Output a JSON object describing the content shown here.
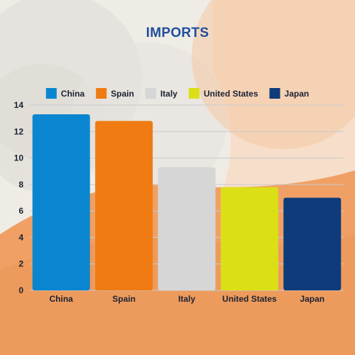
{
  "chart_data": {
    "type": "bar",
    "title": "IMPORTS",
    "categories": [
      "China",
      "Spain",
      "Italy",
      "United States",
      "Japan"
    ],
    "values": [
      13.3,
      12.8,
      9.3,
      7.8,
      7.0
    ],
    "colors": [
      "#0a86d0",
      "#f07b12",
      "#d6d6d6",
      "#dbe016",
      "#0d3b7b"
    ],
    "legend": [
      "China",
      "Spain",
      "Italy",
      "United States",
      "Japan"
    ],
    "legend_position": "top",
    "ylim": [
      0,
      14
    ],
    "yticks": [
      0,
      2,
      4,
      6,
      8,
      10,
      12,
      14
    ],
    "grid": true,
    "xlabel": "",
    "ylabel": ""
  },
  "theme": {
    "title_color": "#1f4e9c",
    "text_color": "#1b2233",
    "grid_color": "#c9c9cf",
    "bg_color": "#f2efe9",
    "accent_orange": "#f0a065"
  }
}
